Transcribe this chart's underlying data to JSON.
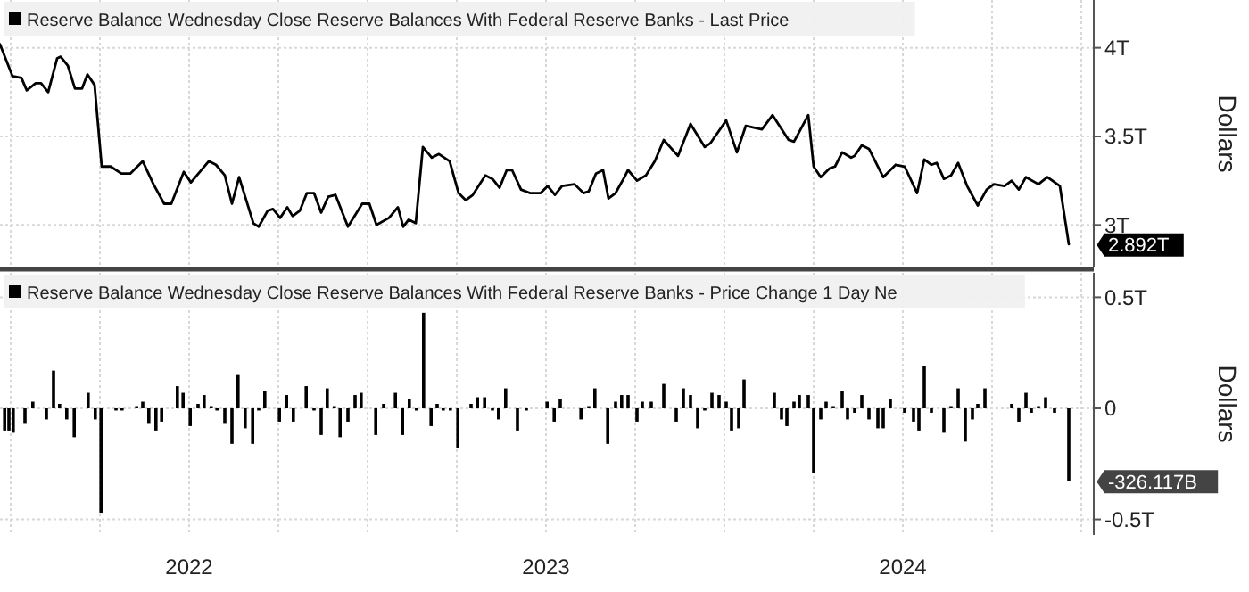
{
  "chart_data": [
    {
      "type": "line",
      "ylabel": "Dollars",
      "annotations": [
        "2.892T"
      ],
      "legend": "top left",
      "grid": true,
      "tick_labels": "y",
      "xlim": [
        2021.97,
        2025.035
      ],
      "ylim": [
        2.76,
        4.27
      ],
      "xticks": [
        {
          "value": 2022,
          "label": null
        },
        {
          "value": 2022.25,
          "label": null
        },
        {
          "value": 2022.5,
          "label": null
        },
        {
          "value": 2022.75,
          "label": null
        },
        {
          "value": 2023,
          "label": null
        },
        {
          "value": 2023.25,
          "label": null
        },
        {
          "value": 2023.5,
          "label": null
        },
        {
          "value": 2023.75,
          "label": null
        },
        {
          "value": 2024,
          "label": null
        },
        {
          "value": 2024.25,
          "label": null
        },
        {
          "value": 2024.5,
          "label": null
        },
        {
          "value": 2024.75,
          "label": null
        },
        {
          "value": 2025,
          "label": null
        }
      ],
      "yticks": [
        {
          "value": 3,
          "label": "3T"
        },
        {
          "value": 3.5,
          "label": "3.5T"
        },
        {
          "value": 4,
          "label": "4T"
        }
      ],
      "x": [
        2021.97,
        2022.005,
        2022.03,
        2022.045,
        2022.07,
        2022.085,
        2022.105,
        2022.13,
        2022.14,
        2022.16,
        2022.18,
        2022.2,
        2022.215,
        2022.235,
        2022.255,
        2022.28,
        2022.31,
        2022.335,
        2022.37,
        2022.4,
        2022.43,
        2022.45,
        2022.485,
        2022.505,
        2022.555,
        2022.575,
        2022.6,
        2022.62,
        2022.64,
        2022.68,
        2022.695,
        2022.72,
        2022.735,
        2022.755,
        2022.775,
        2022.79,
        2022.81,
        2022.83,
        2022.85,
        2022.87,
        2022.89,
        2022.91,
        2022.945,
        2022.985,
        2023.005,
        2023.025,
        2023.06,
        2023.085,
        2023.1,
        2023.115,
        2023.135,
        2023.155,
        2023.18,
        2023.2,
        2023.23,
        2023.255,
        2023.275,
        2023.295,
        2023.33,
        2023.35,
        2023.37,
        2023.39,
        2023.405,
        2023.43,
        2023.455,
        2023.485,
        2023.505,
        2023.525,
        2023.545,
        2023.58,
        2023.605,
        2023.62,
        2023.64,
        2023.66,
        2023.675,
        2023.695,
        2023.72,
        2023.73,
        2023.755,
        2023.78,
        2023.805,
        2023.83,
        2023.87,
        2023.905,
        2023.945,
        2023.96,
        2024.005,
        2024.035,
        2024.06,
        2024.105,
        2024.135,
        2024.18,
        2024.195,
        2024.235,
        2024.25,
        2024.27,
        2024.295,
        2024.31,
        2024.33,
        2024.355,
        2024.365,
        2024.385,
        2024.405,
        2024.445,
        2024.48,
        2024.505,
        2024.54,
        2024.56,
        2024.58,
        2024.595,
        2024.615,
        2024.635,
        2024.655,
        2024.68,
        2024.71,
        2024.735,
        2024.755,
        2024.785,
        2024.805,
        2024.825,
        2024.845,
        2024.88,
        2024.905,
        2024.94,
        2024.965
      ],
      "series": [
        {
          "name": "Reserve Balance Wednesday Close Reserve Balances With Federal Reserve Banks - Last Price",
          "color": "#000000",
          "values": [
            4.02,
            3.84,
            3.83,
            3.76,
            3.8,
            3.8,
            3.75,
            3.94,
            3.95,
            3.9,
            3.77,
            3.77,
            3.85,
            3.79,
            3.33,
            3.33,
            3.29,
            3.29,
            3.36,
            3.23,
            3.12,
            3.12,
            3.3,
            3.24,
            3.36,
            3.34,
            3.28,
            3.12,
            3.27,
            3.01,
            2.99,
            3.08,
            3.09,
            3.04,
            3.1,
            3.05,
            3.08,
            3.18,
            3.18,
            3.07,
            3.16,
            3.17,
            2.99,
            3.12,
            3.12,
            3.0,
            3.04,
            3.1,
            2.99,
            3.03,
            3.01,
            3.44,
            3.38,
            3.4,
            3.36,
            3.18,
            3.14,
            3.17,
            3.28,
            3.26,
            3.21,
            3.31,
            3.31,
            3.2,
            3.18,
            3.18,
            3.22,
            3.17,
            3.22,
            3.23,
            3.18,
            3.19,
            3.29,
            3.31,
            3.15,
            3.18,
            3.27,
            3.31,
            3.25,
            3.28,
            3.36,
            3.48,
            3.39,
            3.57,
            3.44,
            3.46,
            3.59,
            3.41,
            3.56,
            3.54,
            3.62,
            3.48,
            3.47,
            3.62,
            3.33,
            3.27,
            3.32,
            3.33,
            3.41,
            3.38,
            3.39,
            3.45,
            3.43,
            3.27,
            3.34,
            3.33,
            3.18,
            3.37,
            3.34,
            3.35,
            3.26,
            3.28,
            3.35,
            3.22,
            3.11,
            3.2,
            3.23,
            3.22,
            3.25,
            3.2,
            3.27,
            3.23,
            3.27,
            3.22,
            2.892
          ]
        }
      ]
    },
    {
      "type": "bar",
      "ylabel": "Dollars",
      "annotations": [
        "-326.117B"
      ],
      "legend": "top left",
      "grid": true,
      "xlim": [
        2021.97,
        2025.035
      ],
      "ylim": [
        -0.57,
        0.61
      ],
      "xticks": [
        {
          "value": 2022,
          "label": null
        },
        {
          "value": 2022.25,
          "label": null
        },
        {
          "value": 2022.5,
          "label": "2022"
        },
        {
          "value": 2022.75,
          "label": null
        },
        {
          "value": 2023,
          "label": null
        },
        {
          "value": 2023.25,
          "label": null
        },
        {
          "value": 2023.5,
          "label": "2023"
        },
        {
          "value": 2023.75,
          "label": null
        },
        {
          "value": 2024,
          "label": null
        },
        {
          "value": 2024.25,
          "label": null
        },
        {
          "value": 2024.5,
          "label": "2024"
        },
        {
          "value": 2024.75,
          "label": null
        },
        {
          "value": 2025,
          "label": null
        }
      ],
      "yticks": [
        {
          "value": -0.5,
          "label": "-0.5T"
        },
        0,
        {
          "value": 0.5,
          "label": "0.5T"
        }
      ],
      "x": [
        2021.983,
        2021.995,
        2022.007,
        2022.04,
        2022.062,
        2022.1,
        2022.12,
        2022.137,
        2022.157,
        2022.178,
        2022.217,
        2022.237,
        2022.253,
        2022.295,
        2022.312,
        2022.353,
        2022.37,
        2022.387,
        2022.407,
        2022.423,
        2022.467,
        2022.483,
        2022.503,
        2022.525,
        2022.542,
        2022.562,
        2022.578,
        2022.6,
        2022.62,
        2022.637,
        2022.657,
        2022.678,
        2022.695,
        2022.712,
        2022.753,
        2022.773,
        2022.792,
        2022.828,
        2022.85,
        2022.87,
        2022.887,
        2022.907,
        2022.923,
        2022.945,
        2022.965,
        2022.982,
        2023.023,
        2023.045,
        2023.078,
        2023.098,
        2023.117,
        2023.137,
        2023.157,
        2023.178,
        2023.195,
        2023.212,
        2023.232,
        2023.253,
        2023.29,
        2023.308,
        2023.328,
        2023.35,
        2023.367,
        2023.387,
        2023.42,
        2023.445,
        2023.503,
        2023.523,
        2023.54,
        2023.598,
        2023.62,
        2023.637,
        2023.673,
        2023.695,
        2023.712,
        2023.73,
        2023.755,
        2023.77,
        2023.795,
        2023.83,
        2023.865,
        2023.885,
        2023.905,
        2023.925,
        2023.945,
        2023.965,
        2023.985,
        2024.005,
        2024.02,
        2024.04,
        2024.055,
        2024.14,
        2024.16,
        2024.175,
        2024.195,
        2024.21,
        2024.235,
        2024.25,
        2024.27,
        2024.285,
        2024.305,
        2024.33,
        2024.345,
        2024.365,
        2024.385,
        2024.405,
        2024.43,
        2024.445,
        2024.465,
        2024.505,
        2024.53,
        2024.545,
        2024.56,
        2024.58,
        2024.615,
        2024.635,
        2024.655,
        2024.675,
        2024.695,
        2024.71,
        2024.73,
        2024.805,
        2024.825,
        2024.845,
        2024.86,
        2024.88,
        2024.9,
        2024.925,
        2024.965
      ],
      "series": [
        {
          "name": "Reserve Balance Wednesday Close Reserve Balances With Federal Reserve Banks - Price Change 1 Day Ne",
          "color": "#000000",
          "values": [
            -0.1,
            -0.1,
            -0.11,
            -0.07,
            0.03,
            -0.05,
            0.17,
            0.02,
            -0.05,
            -0.13,
            0.07,
            -0.05,
            -0.47,
            -0.01,
            -0.01,
            0.01,
            0.03,
            -0.07,
            -0.1,
            -0.06,
            0.1,
            0.07,
            -0.08,
            0.02,
            0.06,
            0.01,
            -0.01,
            -0.07,
            -0.16,
            0.15,
            -0.09,
            -0.16,
            -0.01,
            0.08,
            -0.06,
            0.06,
            -0.06,
            0.1,
            -0.01,
            -0.12,
            0.09,
            0.01,
            -0.13,
            -0.06,
            0.06,
            0.07,
            -0.12,
            0.02,
            0.07,
            -0.12,
            0.04,
            -0.01,
            0.43,
            -0.08,
            0.02,
            -0.01,
            -0.01,
            -0.18,
            0.02,
            0.05,
            0.05,
            -0.01,
            -0.05,
            0.09,
            -0.1,
            -0.01,
            0.03,
            -0.06,
            0.04,
            -0.05,
            0.01,
            0.09,
            -0.16,
            0.03,
            0.06,
            0.06,
            -0.06,
            0.03,
            0.03,
            0.11,
            -0.06,
            0.09,
            0.06,
            -0.09,
            -0.01,
            0.07,
            0.06,
            0.03,
            -0.1,
            -0.09,
            0.13,
            0.07,
            -0.05,
            -0.08,
            0.03,
            0.06,
            0.06,
            -0.29,
            -0.05,
            0.03,
            0.01,
            0.08,
            -0.05,
            -0.02,
            0.06,
            -0.05,
            -0.09,
            -0.09,
            0.04,
            -0.02,
            -0.06,
            -0.1,
            0.19,
            -0.02,
            -0.11,
            0.01,
            0.09,
            -0.15,
            -0.05,
            0.02,
            0.09,
            0.02,
            -0.06,
            0.07,
            -0.02,
            0.01,
            0.05,
            -0.02,
            -0.326
          ]
        }
      ]
    }
  ]
}
